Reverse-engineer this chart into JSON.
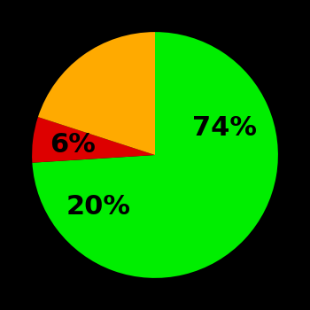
{
  "slices": [
    74,
    6,
    20
  ],
  "labels": [
    "74%",
    "6%",
    "20%"
  ],
  "colors": [
    "#00ee00",
    "#dd0000",
    "#ffaa00"
  ],
  "background_color": "#000000",
  "startangle": 90,
  "figsize": [
    3.5,
    3.5
  ],
  "dpi": 100,
  "text_fontsize": 22,
  "text_fontweight": "bold"
}
